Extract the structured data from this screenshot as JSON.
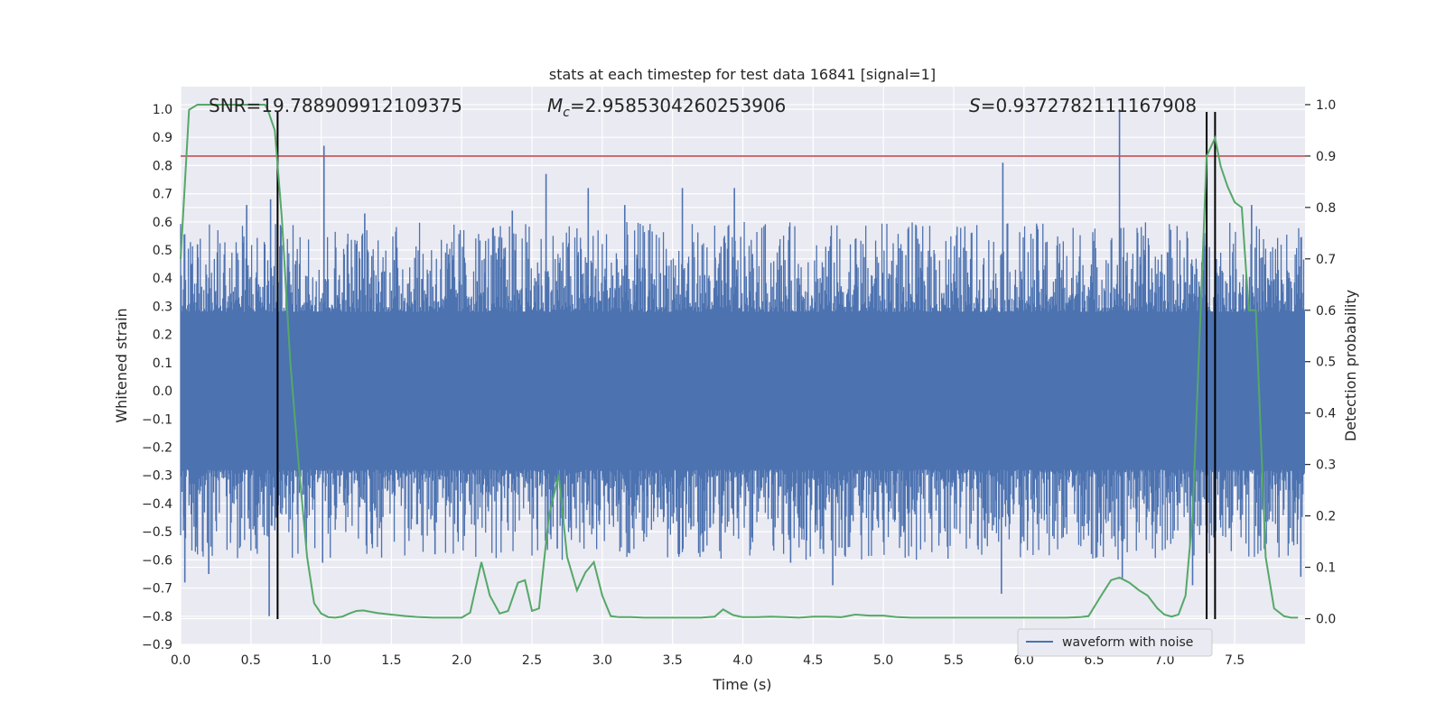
{
  "chart_data": {
    "type": "line",
    "title": "stats at each timestep for test data 16841 [signal=1]",
    "xlabel": "Time (s)",
    "ylabel_left": "Whitened strain",
    "ylabel_right": "Detection probability",
    "xlim": [
      0.0,
      8.0
    ],
    "ylim_left": [
      -0.9,
      1.08
    ],
    "ylim_right": [
      -0.05,
      1.035
    ],
    "x_ticks": [
      0.0,
      0.5,
      1.0,
      1.5,
      2.0,
      2.5,
      3.0,
      3.5,
      4.0,
      4.5,
      5.0,
      5.5,
      6.0,
      6.5,
      7.0,
      7.5
    ],
    "x_tick_labels": [
      "0.0",
      "0.5",
      "1.0",
      "1.5",
      "2.0",
      "2.5",
      "3.0",
      "3.5",
      "4.0",
      "4.5",
      "5.0",
      "5.5",
      "6.0",
      "6.5",
      "7.0",
      "7.5"
    ],
    "y_left_ticks": [
      -0.9,
      -0.8,
      -0.7,
      -0.6,
      -0.5,
      -0.4,
      -0.3,
      -0.2,
      -0.1,
      0.0,
      0.1,
      0.2,
      0.3,
      0.4,
      0.5,
      0.6,
      0.7,
      0.8,
      0.9,
      1.0
    ],
    "y_left_tick_labels": [
      "−0.9",
      "−0.8",
      "−0.7",
      "−0.6",
      "−0.5",
      "−0.4",
      "−0.3",
      "−0.2",
      "−0.1",
      "0.0",
      "0.1",
      "0.2",
      "0.3",
      "0.4",
      "0.5",
      "0.6",
      "0.7",
      "0.8",
      "0.9",
      "1.0"
    ],
    "y_right_ticks": [
      0.0,
      0.1,
      0.2,
      0.3,
      0.4,
      0.5,
      0.6,
      0.7,
      0.8,
      0.9,
      1.0
    ],
    "y_right_tick_labels": [
      "0.0",
      "0.1",
      "0.2",
      "0.3",
      "0.4",
      "0.5",
      "0.6",
      "0.7",
      "0.8",
      "0.9",
      "1.0"
    ],
    "grid": true,
    "legend": {
      "placement": "lower-right",
      "entries": [
        {
          "label": "waveform with noise",
          "color": "#4c72b0"
        }
      ]
    },
    "annotations": {
      "snr": "SNR=19.788909912109375",
      "mc_symbol": "M",
      "mc_sub": "c",
      "mc_value": "=2.9585304260253906",
      "s_symbol": "S",
      "s_value": "=0.9372782111167908"
    },
    "threshold": {
      "value": 0.9,
      "axis": "right",
      "color": "#c44e52"
    },
    "vertical_lines": {
      "x": [
        0.69,
        7.3,
        7.36
      ],
      "color": "#000000"
    },
    "colors": {
      "waveform": "#4c72b0",
      "probability": "#55a868",
      "background": "#eaeaf2",
      "grid": "#ffffff"
    },
    "waveform": {
      "name": "waveform with noise",
      "approx_envelope": [
        0.28,
        -0.28
      ],
      "peaks": [
        {
          "x": 0.03,
          "y": -0.68
        },
        {
          "x": 0.12,
          "y": 0.52
        },
        {
          "x": 0.2,
          "y": -0.65
        },
        {
          "x": 0.47,
          "y": 0.66
        },
        {
          "x": 0.64,
          "y": 0.68
        },
        {
          "x": 0.63,
          "y": -0.8
        },
        {
          "x": 1.02,
          "y": 0.87
        },
        {
          "x": 1.01,
          "y": -0.61
        },
        {
          "x": 1.31,
          "y": 0.63
        },
        {
          "x": 1.81,
          "y": -0.58
        },
        {
          "x": 2.36,
          "y": 0.64
        },
        {
          "x": 2.6,
          "y": 0.77
        },
        {
          "x": 2.68,
          "y": -0.56
        },
        {
          "x": 2.9,
          "y": 0.72
        },
        {
          "x": 3.16,
          "y": 0.66
        },
        {
          "x": 3.57,
          "y": 0.72
        },
        {
          "x": 3.94,
          "y": 0.72
        },
        {
          "x": 4.34,
          "y": -0.61
        },
        {
          "x": 4.64,
          "y": -0.69
        },
        {
          "x": 5.85,
          "y": 0.81
        },
        {
          "x": 5.84,
          "y": -0.72
        },
        {
          "x": 6.68,
          "y": 1.0
        },
        {
          "x": 6.7,
          "y": -0.67
        },
        {
          "x": 7.2,
          "y": -0.69
        },
        {
          "x": 7.62,
          "y": 0.66
        },
        {
          "x": 7.97,
          "y": -0.66
        }
      ]
    },
    "probability": {
      "name": "Detection probability",
      "x": [
        0.0,
        0.06,
        0.12,
        0.2,
        0.3,
        0.4,
        0.5,
        0.6,
        0.62,
        0.67,
        0.72,
        0.78,
        0.84,
        0.9,
        0.95,
        1.0,
        1.05,
        1.1,
        1.15,
        1.2,
        1.25,
        1.3,
        1.4,
        1.5,
        1.6,
        1.7,
        1.8,
        1.9,
        2.0,
        2.06,
        2.14,
        2.2,
        2.27,
        2.33,
        2.4,
        2.45,
        2.5,
        2.55,
        2.62,
        2.69,
        2.75,
        2.82,
        2.88,
        2.94,
        3.0,
        3.06,
        3.12,
        3.2,
        3.3,
        3.4,
        3.5,
        3.6,
        3.7,
        3.8,
        3.86,
        3.93,
        4.0,
        4.1,
        4.2,
        4.3,
        4.4,
        4.5,
        4.6,
        4.7,
        4.8,
        4.9,
        5.0,
        5.1,
        5.2,
        5.3,
        5.4,
        5.5,
        5.6,
        5.7,
        5.8,
        5.9,
        6.0,
        6.1,
        6.2,
        6.3,
        6.4,
        6.46,
        6.55,
        6.62,
        6.68,
        6.75,
        6.82,
        6.88,
        6.95,
        7.0,
        7.05,
        7.1,
        7.15,
        7.2,
        7.25,
        7.3,
        7.36,
        7.4,
        7.45,
        7.5,
        7.55,
        7.6,
        7.65,
        7.72,
        7.78,
        7.85,
        7.9,
        7.95
      ],
      "y": [
        0.7,
        0.99,
        1.0,
        1.0,
        1.0,
        1.0,
        1.0,
        1.0,
        0.99,
        0.95,
        0.78,
        0.5,
        0.3,
        0.12,
        0.03,
        0.01,
        0.003,
        0.002,
        0.004,
        0.01,
        0.015,
        0.016,
        0.011,
        0.008,
        0.005,
        0.003,
        0.002,
        0.002,
        0.002,
        0.012,
        0.11,
        0.045,
        0.01,
        0.015,
        0.07,
        0.075,
        0.015,
        0.02,
        0.2,
        0.28,
        0.12,
        0.055,
        0.09,
        0.11,
        0.045,
        0.005,
        0.003,
        0.003,
        0.002,
        0.002,
        0.002,
        0.002,
        0.002,
        0.004,
        0.018,
        0.007,
        0.003,
        0.003,
        0.004,
        0.003,
        0.002,
        0.004,
        0.004,
        0.003,
        0.008,
        0.006,
        0.006,
        0.003,
        0.002,
        0.002,
        0.002,
        0.002,
        0.002,
        0.002,
        0.002,
        0.002,
        0.002,
        0.002,
        0.002,
        0.002,
        0.003,
        0.005,
        0.045,
        0.075,
        0.08,
        0.07,
        0.055,
        0.045,
        0.02,
        0.008,
        0.004,
        0.008,
        0.045,
        0.2,
        0.55,
        0.9,
        0.935,
        0.88,
        0.84,
        0.81,
        0.8,
        0.6,
        0.6,
        0.12,
        0.02,
        0.005,
        0.002,
        0.002
      ]
    }
  }
}
